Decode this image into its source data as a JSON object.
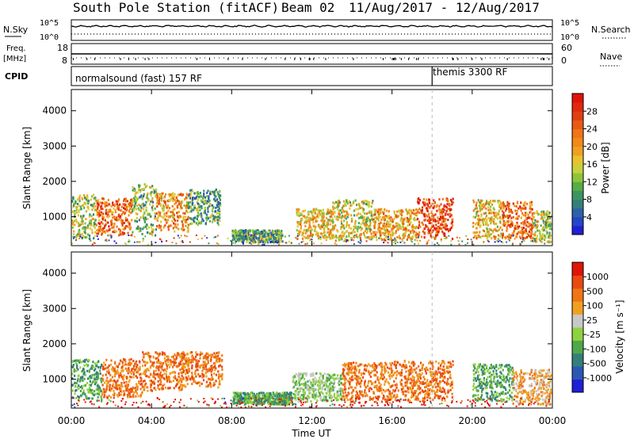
{
  "header": {
    "station": "South Pole Station (fitACF)",
    "beam": "Beam 02",
    "date_range": "11/Aug/2017 - 12/Aug/2017"
  },
  "summary": {
    "left_labels": {
      "nsky": "N.Sky",
      "freq_line1": "Freq.",
      "freq_line2": "[MHz]",
      "cpid": "CPID"
    },
    "right_labels": {
      "nsearch": "N.Search",
      "nave": "Nave"
    },
    "noise_ticks": {
      "left": [
        "10^5",
        "10^0"
      ],
      "right": [
        "10^5",
        "10^0"
      ]
    },
    "freq_ticks": {
      "left": [
        "18",
        "8"
      ],
      "right": [
        "60",
        "0"
      ]
    },
    "cpid_segments": [
      {
        "label": "normalsound (fast) 157 RF",
        "start_hour": 0
      },
      {
        "label": "themis 3300 RF",
        "start_hour": 18
      }
    ]
  },
  "chart_data": [
    {
      "type": "heatmap",
      "name": "power",
      "ylabel": "Slant Range [km]",
      "xlabel": "",
      "xlim": [
        0,
        24
      ],
      "ylim": [
        180,
        4600
      ],
      "yticks": [
        1000,
        2000,
        3000,
        4000
      ],
      "colorbar": {
        "label": "Power [dB]",
        "range": [
          0,
          32
        ],
        "ticks": [
          "28",
          "24",
          "20",
          "16",
          "12",
          "8",
          "4"
        ],
        "tick_values": [
          28,
          24,
          20,
          16,
          12,
          8,
          4
        ],
        "colors": [
          "#1f1fd6",
          "#2545c8",
          "#2b62a8",
          "#347f7a",
          "#3c9560",
          "#58ad45",
          "#8fc43a",
          "#c8d13a",
          "#e9c12f",
          "#f0a020",
          "#f08a1b",
          "#f07418",
          "#e85a14",
          "#e04010",
          "#e02a0c",
          "#e01408"
        ]
      },
      "scatter_regions": [
        {
          "t0": 0.0,
          "t1": 1.2,
          "r0": 400,
          "r1": 1650,
          "v": 14
        },
        {
          "t0": 1.2,
          "t1": 3.0,
          "r0": 500,
          "r1": 1550,
          "v": 24
        },
        {
          "t0": 3.0,
          "t1": 4.2,
          "r0": 500,
          "r1": 1950,
          "v": 12
        },
        {
          "t0": 4.2,
          "t1": 5.8,
          "r0": 600,
          "r1": 1700,
          "v": 20
        },
        {
          "t0": 5.8,
          "t1": 7.4,
          "r0": 800,
          "r1": 1800,
          "v": 10
        },
        {
          "t0": 8.0,
          "t1": 10.5,
          "r0": 300,
          "r1": 650,
          "v": 10
        },
        {
          "t0": 11.2,
          "t1": 13.0,
          "r0": 400,
          "r1": 1250,
          "v": 18
        },
        {
          "t0": 13.0,
          "t1": 15.0,
          "r0": 350,
          "r1": 1500,
          "v": 16
        },
        {
          "t0": 15.0,
          "t1": 17.2,
          "r0": 350,
          "r1": 1250,
          "v": 20
        },
        {
          "t0": 17.2,
          "t1": 19.0,
          "r0": 400,
          "r1": 1550,
          "v": 26
        },
        {
          "t0": 20.0,
          "t1": 21.5,
          "r0": 400,
          "r1": 1500,
          "v": 18
        },
        {
          "t0": 21.5,
          "t1": 23.0,
          "r0": 400,
          "r1": 1450,
          "v": 24
        },
        {
          "t0": 23.0,
          "t1": 23.9,
          "r0": 300,
          "r1": 1200,
          "v": 14
        }
      ]
    },
    {
      "type": "heatmap",
      "name": "velocity",
      "ylabel": "Slant Range [km]",
      "xlabel": "Time UT",
      "xlim": [
        0,
        24
      ],
      "ylim": [
        180,
        4600
      ],
      "yticks": [
        1000,
        2000,
        3000,
        4000
      ],
      "xticks": [
        "00:00",
        "04:00",
        "08:00",
        "12:00",
        "16:00",
        "20:00",
        "00:00"
      ],
      "colorbar": {
        "label": "Velocity [m s⁻¹]",
        "ticks": [
          "1000",
          "500",
          "100",
          "25",
          "-25",
          "-100",
          "-500",
          "-1000"
        ],
        "colors": [
          "#1f1fd6",
          "#2b57b4",
          "#347f7a",
          "#4ea84a",
          "#8fd23f",
          "#c8c8c8",
          "#f0a020",
          "#f07418",
          "#e84a12",
          "#e01408"
        ]
      },
      "scatter_regions": [
        {
          "t0": 0.0,
          "t1": 1.5,
          "r0": 400,
          "r1": 1600,
          "v": 3
        },
        {
          "t0": 1.5,
          "t1": 3.5,
          "r0": 500,
          "r1": 1600,
          "v": 7
        },
        {
          "t0": 3.5,
          "t1": 5.5,
          "r0": 700,
          "r1": 1800,
          "v": 7
        },
        {
          "t0": 5.5,
          "t1": 7.5,
          "r0": 800,
          "r1": 1800,
          "v": 7
        },
        {
          "t0": 8.0,
          "t1": 11.0,
          "r0": 300,
          "r1": 650,
          "v": 3
        },
        {
          "t0": 11.0,
          "t1": 13.5,
          "r0": 400,
          "r1": 1200,
          "v": 4
        },
        {
          "t0": 13.5,
          "t1": 16.0,
          "r0": 350,
          "r1": 1500,
          "v": 7
        },
        {
          "t0": 16.0,
          "t1": 19.0,
          "r0": 400,
          "r1": 1550,
          "v": 7
        },
        {
          "t0": 20.0,
          "t1": 22.0,
          "r0": 400,
          "r1": 1450,
          "v": 3
        },
        {
          "t0": 22.0,
          "t1": 23.9,
          "r0": 300,
          "r1": 1300,
          "v": 6
        }
      ]
    }
  ]
}
